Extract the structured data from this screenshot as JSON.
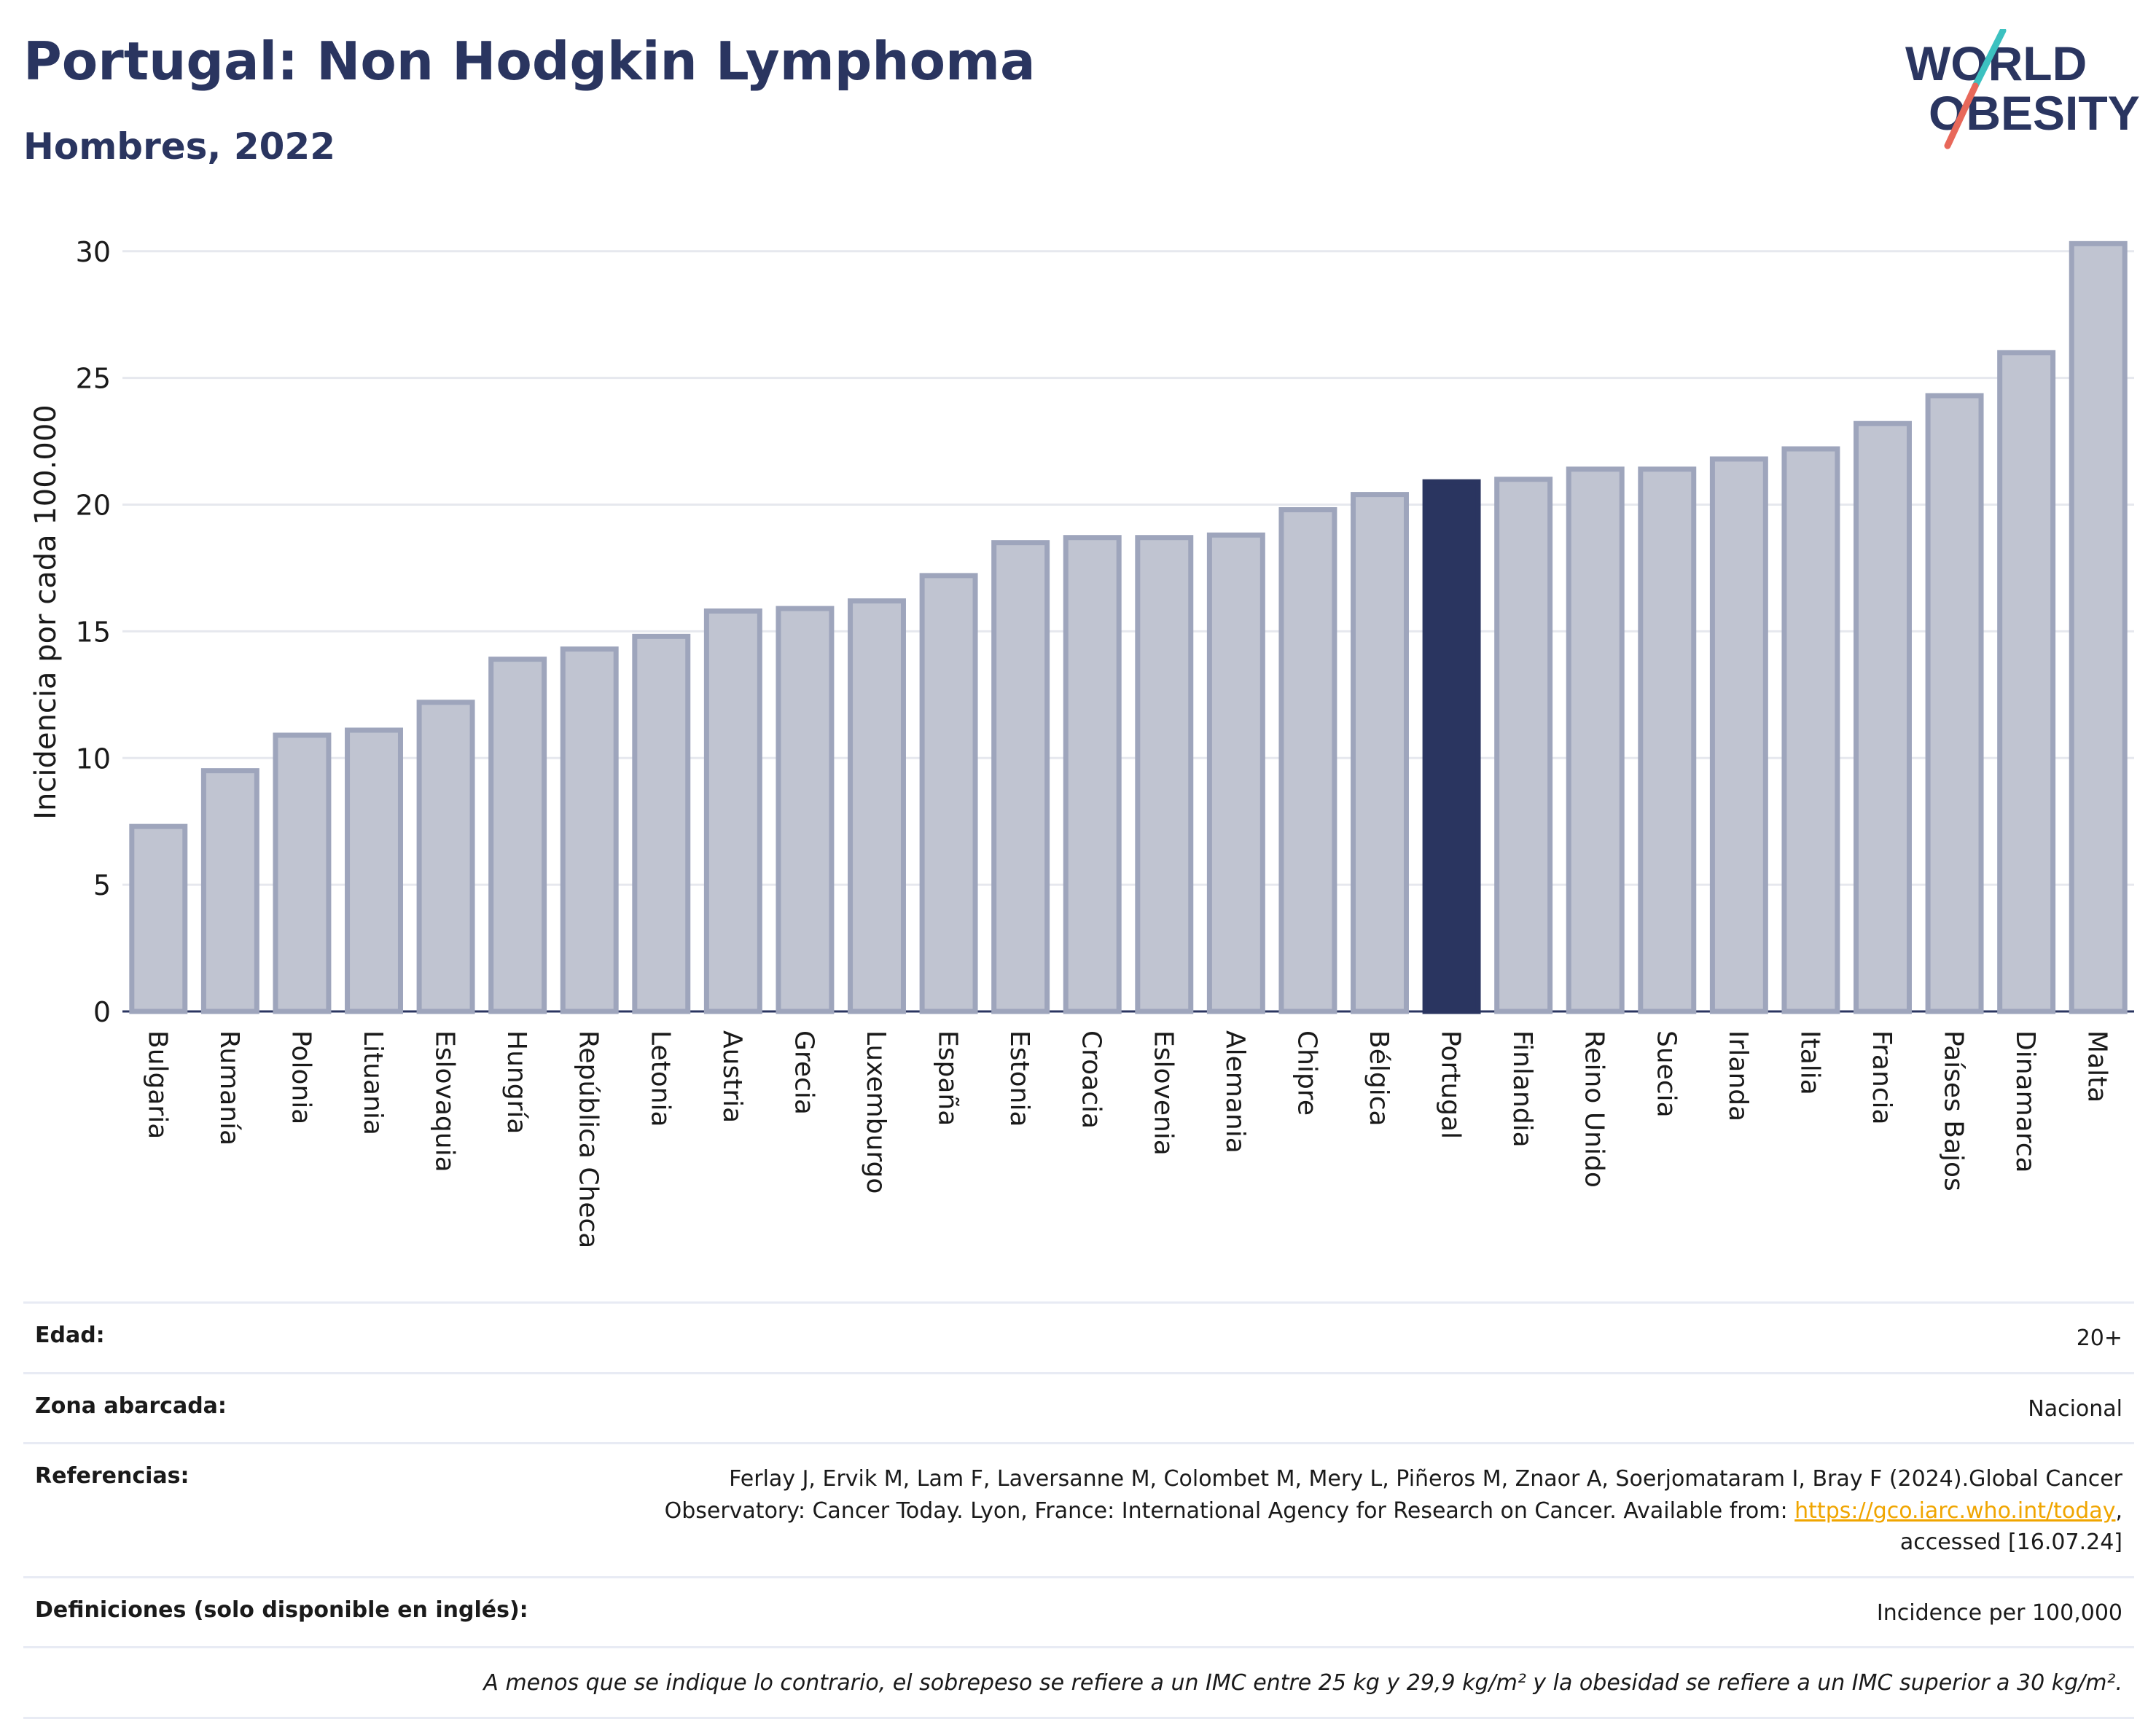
{
  "header": {
    "title": "Portugal: Non Hodgkin Lymphoma",
    "subtitle": "Hombres, 2022"
  },
  "logo": {
    "line1": "WORLD",
    "line2": "OBESITY",
    "colors": [
      "#2a3560",
      "#3cc1c0",
      "#e8685a"
    ]
  },
  "chart_data": {
    "type": "bar",
    "title": "",
    "xlabel": "",
    "ylabel": "Incidencia por cada 100.000",
    "ylim": [
      0,
      31
    ],
    "yticks": [
      0,
      5,
      10,
      15,
      20,
      25,
      30
    ],
    "grid": true,
    "highlight": "Portugal",
    "colors": {
      "bar": "#c0c4d1",
      "bar_edge": "#9ea5bc",
      "highlight": "#2a3560"
    },
    "categories": [
      "Bulgaria",
      "Rumanía",
      "Polonia",
      "Lituania",
      "Eslovaquia",
      "Hungría",
      "República Checa",
      "Letonia",
      "Austria",
      "Grecia",
      "Luxemburgo",
      "España",
      "Estonia",
      "Croacia",
      "Eslovenia",
      "Alemania",
      "Chipre",
      "Bélgica",
      "Portugal",
      "Finlandia",
      "Reino Unido",
      "Suecia",
      "Irlanda",
      "Italia",
      "Francia",
      "Países Bajos",
      "Dinamarca",
      "Malta"
    ],
    "values": [
      7.3,
      9.5,
      10.9,
      11.1,
      12.2,
      13.9,
      14.3,
      14.8,
      15.8,
      15.9,
      16.2,
      17.2,
      18.5,
      18.7,
      18.7,
      18.8,
      19.8,
      20.4,
      20.9,
      21.0,
      21.4,
      21.4,
      21.8,
      22.2,
      23.2,
      24.3,
      26.0,
      30.3
    ]
  },
  "meta": {
    "age_label": "Edad:",
    "age_value": "20+",
    "area_label": "Zona abarcada:",
    "area_value": "Nacional",
    "ref_label": "Referencias:",
    "ref_line1": "Ferlay J, Ervik M, Lam F, Laversanne M, Colombet M, Mery L, Piñeros M, Znaor A, Soerjomataram I, Bray F (2024).Global Cancer",
    "ref_line2": "Observatory: Cancer Today. Lyon, France: International Agency for Research on Cancer. Available from:",
    "ref_link": "https://gco.iarc.who.int/today",
    "ref_line3": "accessed [16.07.24]",
    "def_label": "Definiciones (solo disponible en inglés):",
    "def_value": "Incidence per 100,000",
    "note": "A menos que se indique lo contrario, el sobrepeso se refiere a un IMC entre 25 kg y 29,9 kg/m² y la obesidad se refiere a un IMC superior a 30 kg/m²."
  }
}
